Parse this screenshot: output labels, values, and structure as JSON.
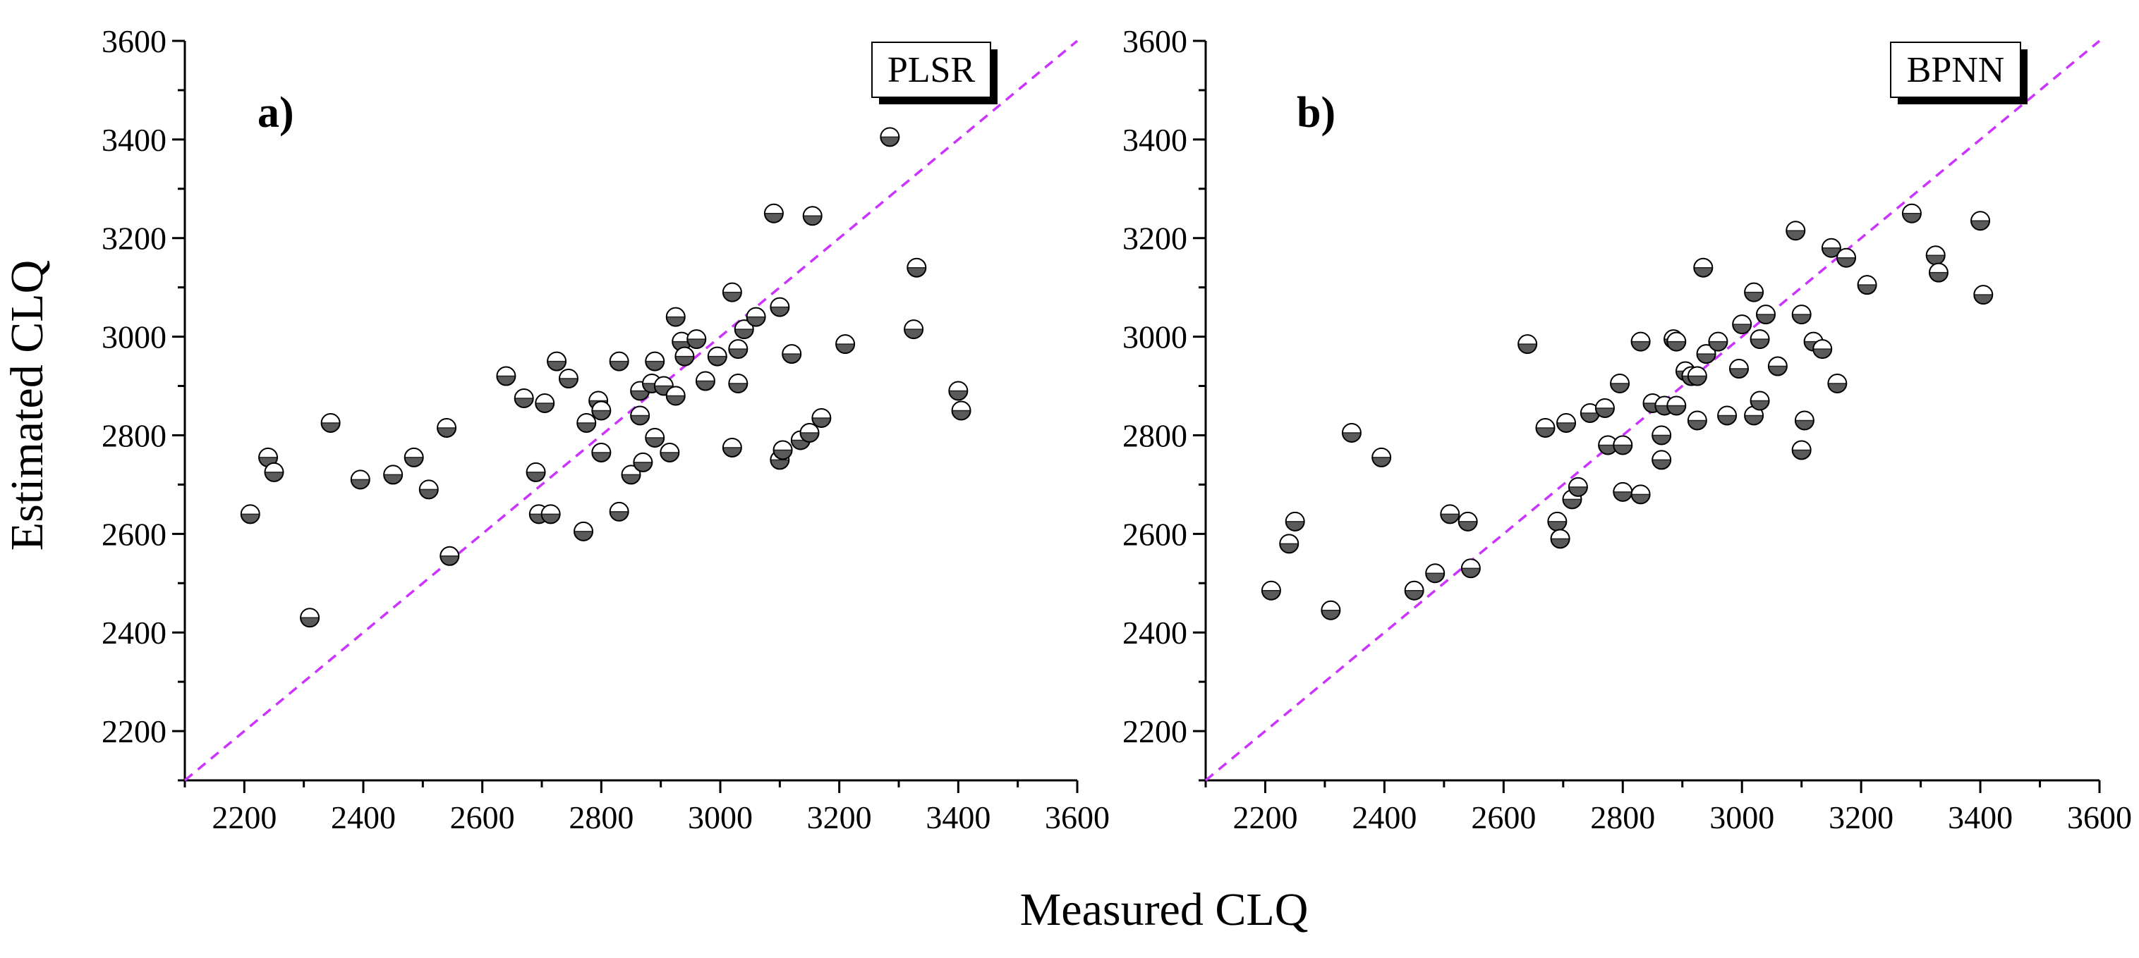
{
  "figure": {
    "ylabel": "Estimated CLQ",
    "xlabel": "Measured CLQ"
  },
  "colors": {
    "marker_dark": "#5a5a5a",
    "marker_light": "#ffffff",
    "marker_edge": "#000000",
    "reference_line": "#cc33ff",
    "axis": "#000000"
  },
  "chart_data": [
    {
      "type": "scatter",
      "panel_label": "a)",
      "legend": "PLSR",
      "xlim": [
        2100,
        3600
      ],
      "ylim": [
        2100,
        3600
      ],
      "xticks": [
        2200,
        2400,
        2600,
        2800,
        3000,
        3200,
        3400,
        3600
      ],
      "yticks": [
        2200,
        2400,
        2600,
        2800,
        3000,
        3200,
        3400,
        3600
      ],
      "reference_line": "1:1",
      "x": [
        2210,
        2240,
        2250,
        2310,
        2345,
        2395,
        2450,
        2485,
        2510,
        2540,
        2545,
        2640,
        2670,
        2690,
        2695,
        2705,
        2715,
        2725,
        2745,
        2770,
        2775,
        2795,
        2800,
        2800,
        2830,
        2830,
        2850,
        2865,
        2865,
        2870,
        2885,
        2890,
        2890,
        2905,
        2915,
        2925,
        2925,
        2935,
        2940,
        2960,
        2975,
        2995,
        3020,
        3020,
        3030,
        3030,
        3040,
        3060,
        3090,
        3100,
        3100,
        3105,
        3120,
        3135,
        3150,
        3155,
        3170,
        3210,
        3285,
        3325,
        3330,
        3400,
        3405
      ],
      "y": [
        2640,
        2755,
        2725,
        2430,
        2825,
        2710,
        2720,
        2755,
        2690,
        2815,
        2555,
        2920,
        2875,
        2725,
        2640,
        2865,
        2640,
        2950,
        2915,
        2605,
        2825,
        2870,
        2850,
        2765,
        2950,
        2645,
        2720,
        2890,
        2840,
        2745,
        2905,
        2950,
        2795,
        2900,
        2765,
        2880,
        3040,
        2990,
        2960,
        2995,
        2910,
        2960,
        3090,
        2775,
        2905,
        2975,
        3015,
        3040,
        3250,
        3060,
        2750,
        2770,
        2965,
        2790,
        2805,
        3245,
        2835,
        2985,
        3405,
        3015,
        3140,
        2890,
        2850
      ]
    },
    {
      "type": "scatter",
      "panel_label": "b)",
      "legend": "BPNN",
      "xlim": [
        2100,
        3600
      ],
      "ylim": [
        2100,
        3600
      ],
      "xticks": [
        2200,
        2400,
        2600,
        2800,
        3000,
        3200,
        3400,
        3600
      ],
      "yticks": [
        2200,
        2400,
        2600,
        2800,
        3000,
        3200,
        3400,
        3600
      ],
      "reference_line": "1:1",
      "x": [
        2210,
        2240,
        2250,
        2310,
        2345,
        2395,
        2450,
        2485,
        2510,
        2540,
        2545,
        2640,
        2670,
        2690,
        2695,
        2705,
        2715,
        2725,
        2745,
        2770,
        2775,
        2795,
        2800,
        2800,
        2830,
        2830,
        2850,
        2865,
        2865,
        2870,
        2885,
        2890,
        2890,
        2905,
        2915,
        2925,
        2925,
        2935,
        2940,
        2960,
        2975,
        2995,
        3000,
        3020,
        3020,
        3030,
        3030,
        3040,
        3060,
        3090,
        3100,
        3100,
        3105,
        3120,
        3135,
        3150,
        3160,
        3175,
        3210,
        3285,
        3325,
        3330,
        3400,
        3405
      ],
      "y": [
        2485,
        2580,
        2625,
        2445,
        2805,
        2755,
        2485,
        2520,
        2640,
        2625,
        2530,
        2985,
        2815,
        2625,
        2590,
        2825,
        2670,
        2695,
        2845,
        2855,
        2780,
        2905,
        2780,
        2685,
        2990,
        2680,
        2865,
        2800,
        2750,
        2860,
        2995,
        2990,
        2860,
        2930,
        2920,
        2830,
        2920,
        3140,
        2965,
        2990,
        2840,
        2935,
        3025,
        3090,
        2840,
        2995,
        2870,
        3045,
        2940,
        3215,
        3045,
        2770,
        2830,
        2990,
        2975,
        3180,
        2905,
        3160,
        3105,
        3250,
        3165,
        3130,
        3235,
        3085
      ]
    }
  ]
}
